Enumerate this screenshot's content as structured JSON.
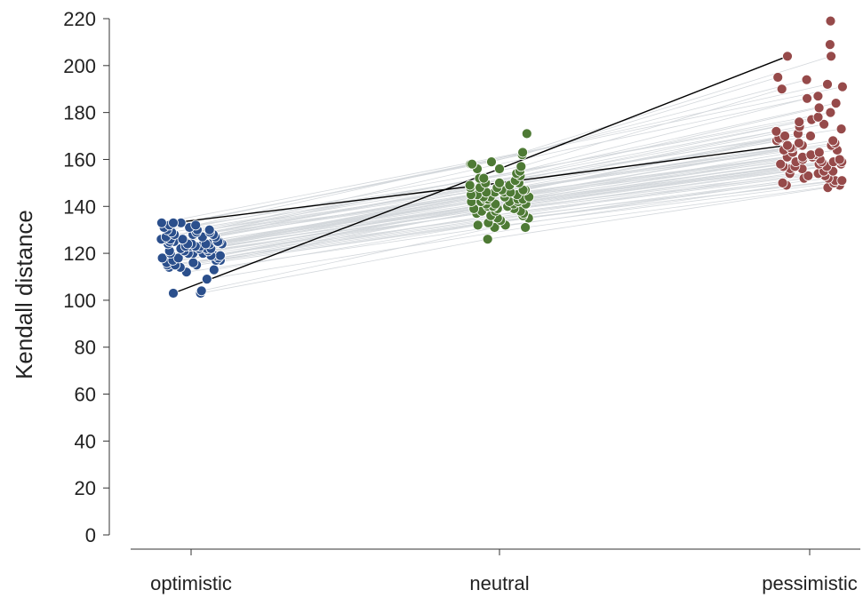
{
  "chart_data": {
    "type": "scatter",
    "ylabel": "Kendall distance",
    "xlabel": "",
    "title": "",
    "categories": [
      "optimistic",
      "neutral",
      "pessimistic"
    ],
    "ylim": [
      0,
      220
    ],
    "yticks": [
      0,
      20,
      40,
      60,
      80,
      100,
      120,
      140,
      160,
      180,
      200,
      220
    ],
    "grid": false,
    "colors": {
      "optimistic": "#2b4f8c",
      "neutral": "#4e7a35",
      "pessimistic": "#964a4a",
      "pair_lines": "#d4d8dc",
      "highlight_lines": "#000000"
    },
    "series": [
      {
        "category": "optimistic",
        "values": [
          103,
          104,
          109,
          112,
          113,
          114,
          114,
          115,
          115,
          115,
          116,
          116,
          117,
          117,
          117,
          118,
          118,
          118,
          119,
          119,
          119,
          120,
          120,
          120,
          120,
          121,
          121,
          121,
          122,
          122,
          122,
          122,
          123,
          123,
          123,
          123,
          123,
          124,
          124,
          124,
          124,
          124,
          124,
          125,
          125,
          125,
          125,
          125,
          126,
          126,
          126,
          126,
          127,
          127,
          127,
          128,
          128,
          128,
          129,
          129,
          129,
          130,
          130,
          130,
          131,
          131,
          132,
          132,
          133,
          133
        ]
      },
      {
        "category": "neutral",
        "values": [
          126,
          131,
          131,
          132,
          132,
          133,
          134,
          135,
          135,
          136,
          136,
          137,
          137,
          138,
          138,
          138,
          139,
          139,
          139,
          140,
          140,
          140,
          140,
          141,
          141,
          141,
          141,
          142,
          142,
          142,
          142,
          143,
          143,
          143,
          143,
          144,
          144,
          144,
          144,
          145,
          145,
          145,
          145,
          146,
          146,
          146,
          146,
          147,
          147,
          147,
          148,
          148,
          148,
          149,
          149,
          150,
          150,
          151,
          152,
          152,
          153,
          154,
          155,
          156,
          157,
          158,
          158,
          159,
          162,
          163,
          171
        ]
      },
      {
        "category": "pessimistic",
        "values": [
          148,
          149,
          149,
          150,
          150,
          151,
          151,
          152,
          152,
          153,
          153,
          154,
          154,
          155,
          155,
          156,
          156,
          157,
          157,
          157,
          158,
          158,
          158,
          159,
          159,
          159,
          159,
          160,
          160,
          160,
          161,
          161,
          161,
          162,
          162,
          163,
          163,
          164,
          164,
          165,
          165,
          166,
          166,
          167,
          167,
          168,
          168,
          169,
          169,
          170,
          170,
          171,
          172,
          173,
          174,
          175,
          176,
          177,
          178,
          180,
          182,
          184,
          186,
          187,
          190,
          191,
          192,
          194,
          195,
          204,
          209,
          219
        ]
      }
    ],
    "highlighted_pairs": [
      {
        "values": [
          103,
          156,
          204
        ]
      },
      {
        "values": [
          133,
          150,
          166
        ]
      }
    ]
  }
}
